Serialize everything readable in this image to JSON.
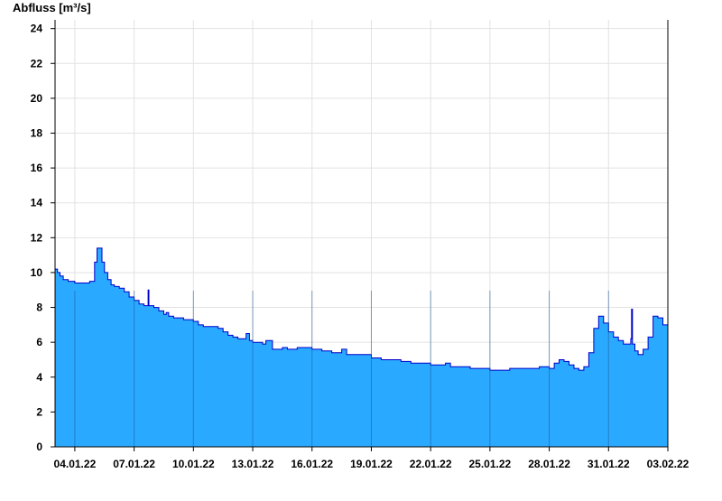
{
  "chart_data": {
    "type": "area",
    "title": "",
    "xlabel": "",
    "ylabel": "Abfluss [m³/s]",
    "ylim": [
      0,
      24.5
    ],
    "yticks": [
      0,
      2,
      4,
      6,
      8,
      10,
      12,
      14,
      16,
      18,
      20,
      22,
      24
    ],
    "xlim": [
      "2022-01-03T00:00",
      "2022-02-03T00:00"
    ],
    "xticks": [
      {
        "date": "2022-01-04",
        "label": "04.01.22"
      },
      {
        "date": "2022-01-07",
        "label": "07.01.22"
      },
      {
        "date": "2022-01-10",
        "label": "10.01.22"
      },
      {
        "date": "2022-01-13",
        "label": "13.01.22"
      },
      {
        "date": "2022-01-16",
        "label": "16.01.22"
      },
      {
        "date": "2022-01-19",
        "label": "19.01.22"
      },
      {
        "date": "2022-01-22",
        "label": "22.01.22"
      },
      {
        "date": "2022-01-25",
        "label": "25.01.22"
      },
      {
        "date": "2022-01-28",
        "label": "28.01.22"
      },
      {
        "date": "2022-01-31",
        "label": "31.01.22"
      },
      {
        "date": "2022-02-03",
        "label": "03.02.22"
      }
    ],
    "grid": true,
    "fill_color": "#29a9ff",
    "line_color": "#0000cc",
    "series": [
      {
        "name": "",
        "x": [
          "2022-01-03T00:00",
          "2022-01-03T03:00",
          "2022-01-03T06:00",
          "2022-01-03T10:00",
          "2022-01-03T16:00",
          "2022-01-04T00:00",
          "2022-01-04T08:00",
          "2022-01-04T18:00",
          "2022-01-05T00:00",
          "2022-01-05T03:00",
          "2022-01-05T06:00",
          "2022-01-05T09:00",
          "2022-01-05T12:00",
          "2022-01-05T16:00",
          "2022-01-05T20:00",
          "2022-01-06T00:00",
          "2022-01-06T06:00",
          "2022-01-06T12:00",
          "2022-01-06T18:00",
          "2022-01-07T00:00",
          "2022-01-07T06:00",
          "2022-01-07T12:00",
          "2022-01-07T16:00",
          "2022-01-07T17:00",
          "2022-01-07T18:00",
          "2022-01-08T00:00",
          "2022-01-08T06:00",
          "2022-01-08T12:00",
          "2022-01-08T15:00",
          "2022-01-08T18:00",
          "2022-01-09T00:00",
          "2022-01-09T12:00",
          "2022-01-10T00:00",
          "2022-01-10T06:00",
          "2022-01-10T12:00",
          "2022-01-11T00:00",
          "2022-01-11T06:00",
          "2022-01-11T12:00",
          "2022-01-11T18:00",
          "2022-01-12T00:00",
          "2022-01-12T06:00",
          "2022-01-12T12:00",
          "2022-01-12T16:00",
          "2022-01-12T20:00",
          "2022-01-13T00:00",
          "2022-01-13T06:00",
          "2022-01-13T12:00",
          "2022-01-13T16:00",
          "2022-01-14T00:00",
          "2022-01-14T06:00",
          "2022-01-14T12:00",
          "2022-01-14T18:00",
          "2022-01-15T00:00",
          "2022-01-15T06:00",
          "2022-01-15T12:00",
          "2022-01-15T18:00",
          "2022-01-16T00:00",
          "2022-01-16T06:00",
          "2022-01-16T12:00",
          "2022-01-16T18:00",
          "2022-01-17T00:00",
          "2022-01-17T06:00",
          "2022-01-17T12:00",
          "2022-01-17T18:00",
          "2022-01-18T00:00",
          "2022-01-18T12:00",
          "2022-01-19T00:00",
          "2022-01-19T12:00",
          "2022-01-20T00:00",
          "2022-01-20T06:00",
          "2022-01-20T12:00",
          "2022-01-20T18:00",
          "2022-01-21T00:00",
          "2022-01-21T12:00",
          "2022-01-22T00:00",
          "2022-01-22T12:00",
          "2022-01-22T18:00",
          "2022-01-23T00:00",
          "2022-01-23T12:00",
          "2022-01-24T00:00",
          "2022-01-24T12:00",
          "2022-01-25T00:00",
          "2022-01-25T12:00",
          "2022-01-26T00:00",
          "2022-01-26T12:00",
          "2022-01-27T00:00",
          "2022-01-27T12:00",
          "2022-01-28T00:00",
          "2022-01-28T06:00",
          "2022-01-28T12:00",
          "2022-01-28T18:00",
          "2022-01-29T00:00",
          "2022-01-29T06:00",
          "2022-01-29T12:00",
          "2022-01-29T18:00",
          "2022-01-30T00:00",
          "2022-01-30T06:00",
          "2022-01-30T12:00",
          "2022-01-30T18:00",
          "2022-01-31T00:00",
          "2022-01-31T06:00",
          "2022-01-31T12:00",
          "2022-01-31T18:00",
          "2022-02-01T00:00",
          "2022-02-01T03:00",
          "2022-02-01T04:00",
          "2022-02-01T05:00",
          "2022-02-01T08:00",
          "2022-02-01T12:00",
          "2022-02-01T18:00",
          "2022-02-02T00:00",
          "2022-02-02T06:00",
          "2022-02-02T12:00",
          "2022-02-02T18:00",
          "2022-02-03T00:00"
        ],
        "values": [
          10.2,
          10.0,
          9.8,
          9.6,
          9.5,
          9.4,
          9.4,
          9.5,
          10.6,
          11.4,
          11.4,
          10.6,
          10.0,
          9.6,
          9.3,
          9.2,
          9.1,
          8.9,
          8.6,
          8.4,
          8.2,
          8.1,
          8.1,
          9.0,
          8.1,
          8.0,
          7.8,
          7.6,
          7.7,
          7.5,
          7.4,
          7.3,
          7.2,
          7.0,
          6.9,
          6.9,
          6.8,
          6.6,
          6.4,
          6.3,
          6.2,
          6.2,
          6.5,
          6.1,
          6.0,
          6.0,
          5.9,
          6.1,
          5.6,
          5.6,
          5.7,
          5.6,
          5.6,
          5.7,
          5.7,
          5.7,
          5.6,
          5.6,
          5.5,
          5.5,
          5.4,
          5.4,
          5.6,
          5.3,
          5.3,
          5.3,
          5.1,
          5.0,
          5.0,
          5.0,
          4.9,
          4.9,
          4.8,
          4.8,
          4.7,
          4.7,
          4.8,
          4.6,
          4.6,
          4.5,
          4.5,
          4.4,
          4.4,
          4.5,
          4.5,
          4.5,
          4.6,
          4.5,
          4.8,
          5.0,
          4.9,
          4.7,
          4.5,
          4.4,
          4.6,
          5.4,
          6.8,
          7.5,
          7.1,
          6.6,
          6.3,
          6.1,
          5.9,
          5.9,
          6.2,
          7.9,
          5.9,
          5.5,
          5.3,
          5.6,
          6.3,
          7.5,
          7.4,
          7.0,
          7.6
        ]
      }
    ]
  }
}
